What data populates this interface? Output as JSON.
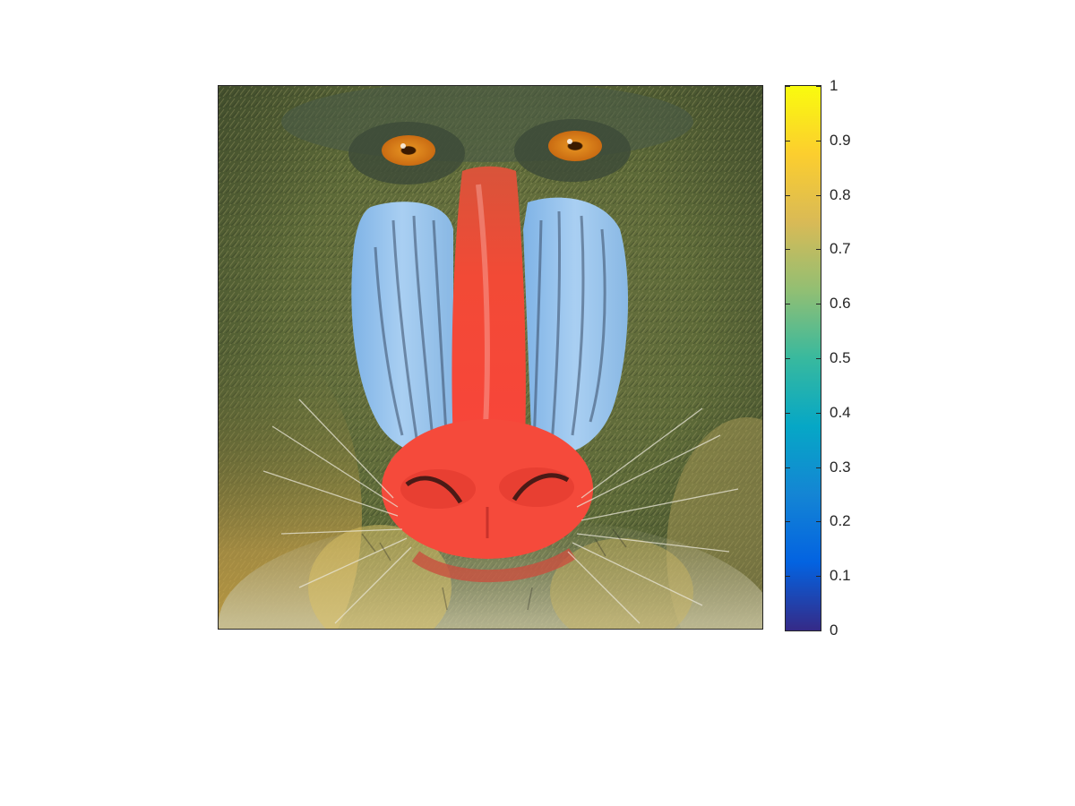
{
  "figure": {
    "subject": "mandrill",
    "colormap": "parula",
    "colormap_stops": [
      "#352a87",
      "#0363e1",
      "#1485d4",
      "#06a7c6",
      "#38b99e",
      "#92bf73",
      "#d9ba56",
      "#fcce2e",
      "#f9fb0e"
    ]
  },
  "colorbar": {
    "min": 0,
    "max": 1,
    "ticks": [
      "0",
      "0.1",
      "0.2",
      "0.3",
      "0.4",
      "0.5",
      "0.6",
      "0.7",
      "0.8",
      "0.9",
      "1"
    ],
    "tick_values": [
      0,
      0.1,
      0.2,
      0.3,
      0.4,
      0.5,
      0.6,
      0.7,
      0.8,
      0.9,
      1
    ]
  }
}
